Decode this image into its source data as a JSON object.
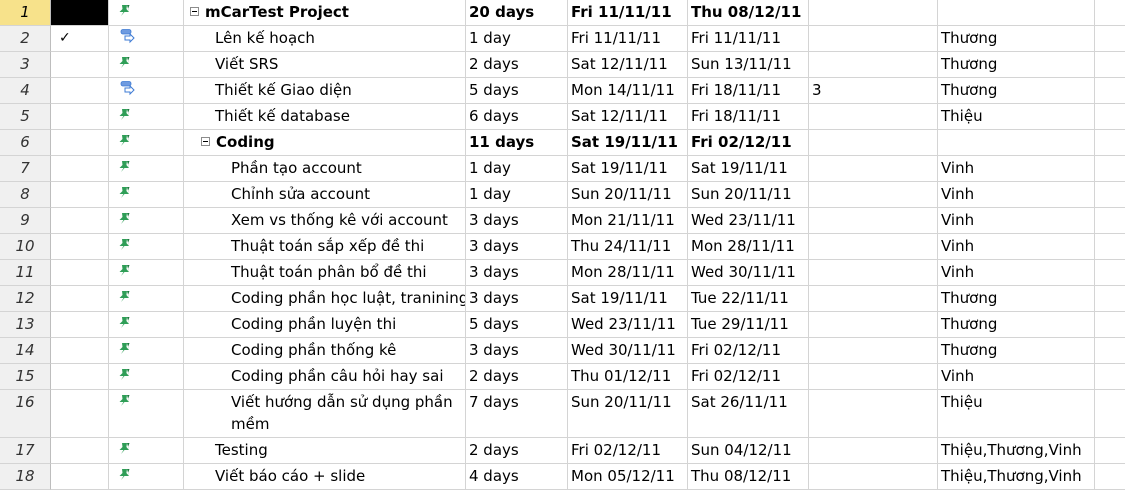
{
  "rows": [
    {
      "num": "1",
      "check": "",
      "mode": "auto",
      "name": "mCarTest Project",
      "duration": "20 days",
      "start": "Fri 11/11/11",
      "finish": "Thu 08/12/11",
      "predecessors": "",
      "resources": ""
    },
    {
      "num": "2",
      "check": "✓",
      "mode": "manual",
      "name": "Lên kế hoạch",
      "duration": "1 day",
      "start": "Fri 11/11/11",
      "finish": "Fri 11/11/11",
      "predecessors": "",
      "resources": "Thương"
    },
    {
      "num": "3",
      "check": "",
      "mode": "auto",
      "name": "Viết SRS",
      "duration": "2 days",
      "start": "Sat 12/11/11",
      "finish": "Sun 13/11/11",
      "predecessors": "",
      "resources": "Thương"
    },
    {
      "num": "4",
      "check": "",
      "mode": "manual",
      "name": "Thiết kế Giao diện",
      "duration": "5 days",
      "start": "Mon 14/11/11",
      "finish": "Fri 18/11/11",
      "predecessors": "3",
      "resources": "Thương"
    },
    {
      "num": "5",
      "check": "",
      "mode": "auto",
      "name": "Thiết kế database",
      "duration": "6 days",
      "start": "Sat 12/11/11",
      "finish": "Fri 18/11/11",
      "predecessors": "",
      "resources": "Thiệu"
    },
    {
      "num": "6",
      "check": "",
      "mode": "auto",
      "name": "Coding",
      "duration": "11 days",
      "start": "Sat 19/11/11",
      "finish": "Fri 02/12/11",
      "predecessors": "",
      "resources": ""
    },
    {
      "num": "7",
      "check": "",
      "mode": "auto",
      "name": "Phần tạo account",
      "duration": "1 day",
      "start": "Sat 19/11/11",
      "finish": "Sat 19/11/11",
      "predecessors": "",
      "resources": "Vinh"
    },
    {
      "num": "8",
      "check": "",
      "mode": "auto",
      "name": "Chỉnh sửa account",
      "duration": "1 day",
      "start": "Sun 20/11/11",
      "finish": "Sun 20/11/11",
      "predecessors": "",
      "resources": "Vinh"
    },
    {
      "num": "9",
      "check": "",
      "mode": "auto",
      "name": "Xem vs thống kê với account",
      "duration": "3 days",
      "start": "Mon 21/11/11",
      "finish": "Wed 23/11/11",
      "predecessors": "",
      "resources": "Vinh"
    },
    {
      "num": "10",
      "check": "",
      "mode": "auto",
      "name": "Thuật toán sắp xếp đề thi",
      "duration": "3 days",
      "start": "Thu 24/11/11",
      "finish": "Mon 28/11/11",
      "predecessors": "",
      "resources": "Vinh"
    },
    {
      "num": "11",
      "check": "",
      "mode": "auto",
      "name": "Thuật toán phân bổ đề thi",
      "duration": "3 days",
      "start": "Mon 28/11/11",
      "finish": "Wed 30/11/11",
      "predecessors": "",
      "resources": "Vinh"
    },
    {
      "num": "12",
      "check": "",
      "mode": "auto",
      "name": "Coding phần học luật, tranining",
      "duration": "3 days",
      "start": "Sat 19/11/11",
      "finish": "Tue 22/11/11",
      "predecessors": "",
      "resources": "Thương"
    },
    {
      "num": "13",
      "check": "",
      "mode": "auto",
      "name": "Coding phần luyện thi",
      "duration": "5 days",
      "start": "Wed 23/11/11",
      "finish": "Tue 29/11/11",
      "predecessors": "",
      "resources": "Thương"
    },
    {
      "num": "14",
      "check": "",
      "mode": "auto",
      "name": "Coding phần thống kê",
      "duration": "3 days",
      "start": "Wed 30/11/11",
      "finish": "Fri 02/12/11",
      "predecessors": "",
      "resources": "Thương"
    },
    {
      "num": "15",
      "check": "",
      "mode": "auto",
      "name": "Coding phần câu hỏi hay sai",
      "duration": "2 days",
      "start": "Thu 01/12/11",
      "finish": "Fri 02/12/11",
      "predecessors": "",
      "resources": "Vinh"
    },
    {
      "num": "16",
      "check": "",
      "mode": "auto",
      "name": "Viết hướng dẫn sử dụng phần mềm",
      "duration": "7 days",
      "start": "Sun 20/11/11",
      "finish": "Sat 26/11/11",
      "predecessors": "",
      "resources": "Thiệu"
    },
    {
      "num": "17",
      "check": "",
      "mode": "auto",
      "name": "Testing",
      "duration": "2 days",
      "start": "Fri 02/12/11",
      "finish": "Sun 04/12/11",
      "predecessors": "",
      "resources": "Thiệu,Thương,Vinh"
    },
    {
      "num": "18",
      "check": "",
      "mode": "auto",
      "name": "Viết báo cáo + slide",
      "duration": "4 days",
      "start": "Mon 05/12/11",
      "finish": "Thu 08/12/11",
      "predecessors": "",
      "resources": "Thiệu,Thương,Vinh"
    }
  ],
  "colors": {
    "selected_row_header": "#f7e28b",
    "row_header": "#f0f0f0",
    "gridline": "#d4d4d4",
    "auto_icon": "#2f9e57",
    "manual_icon": "#3e7bd4"
  }
}
